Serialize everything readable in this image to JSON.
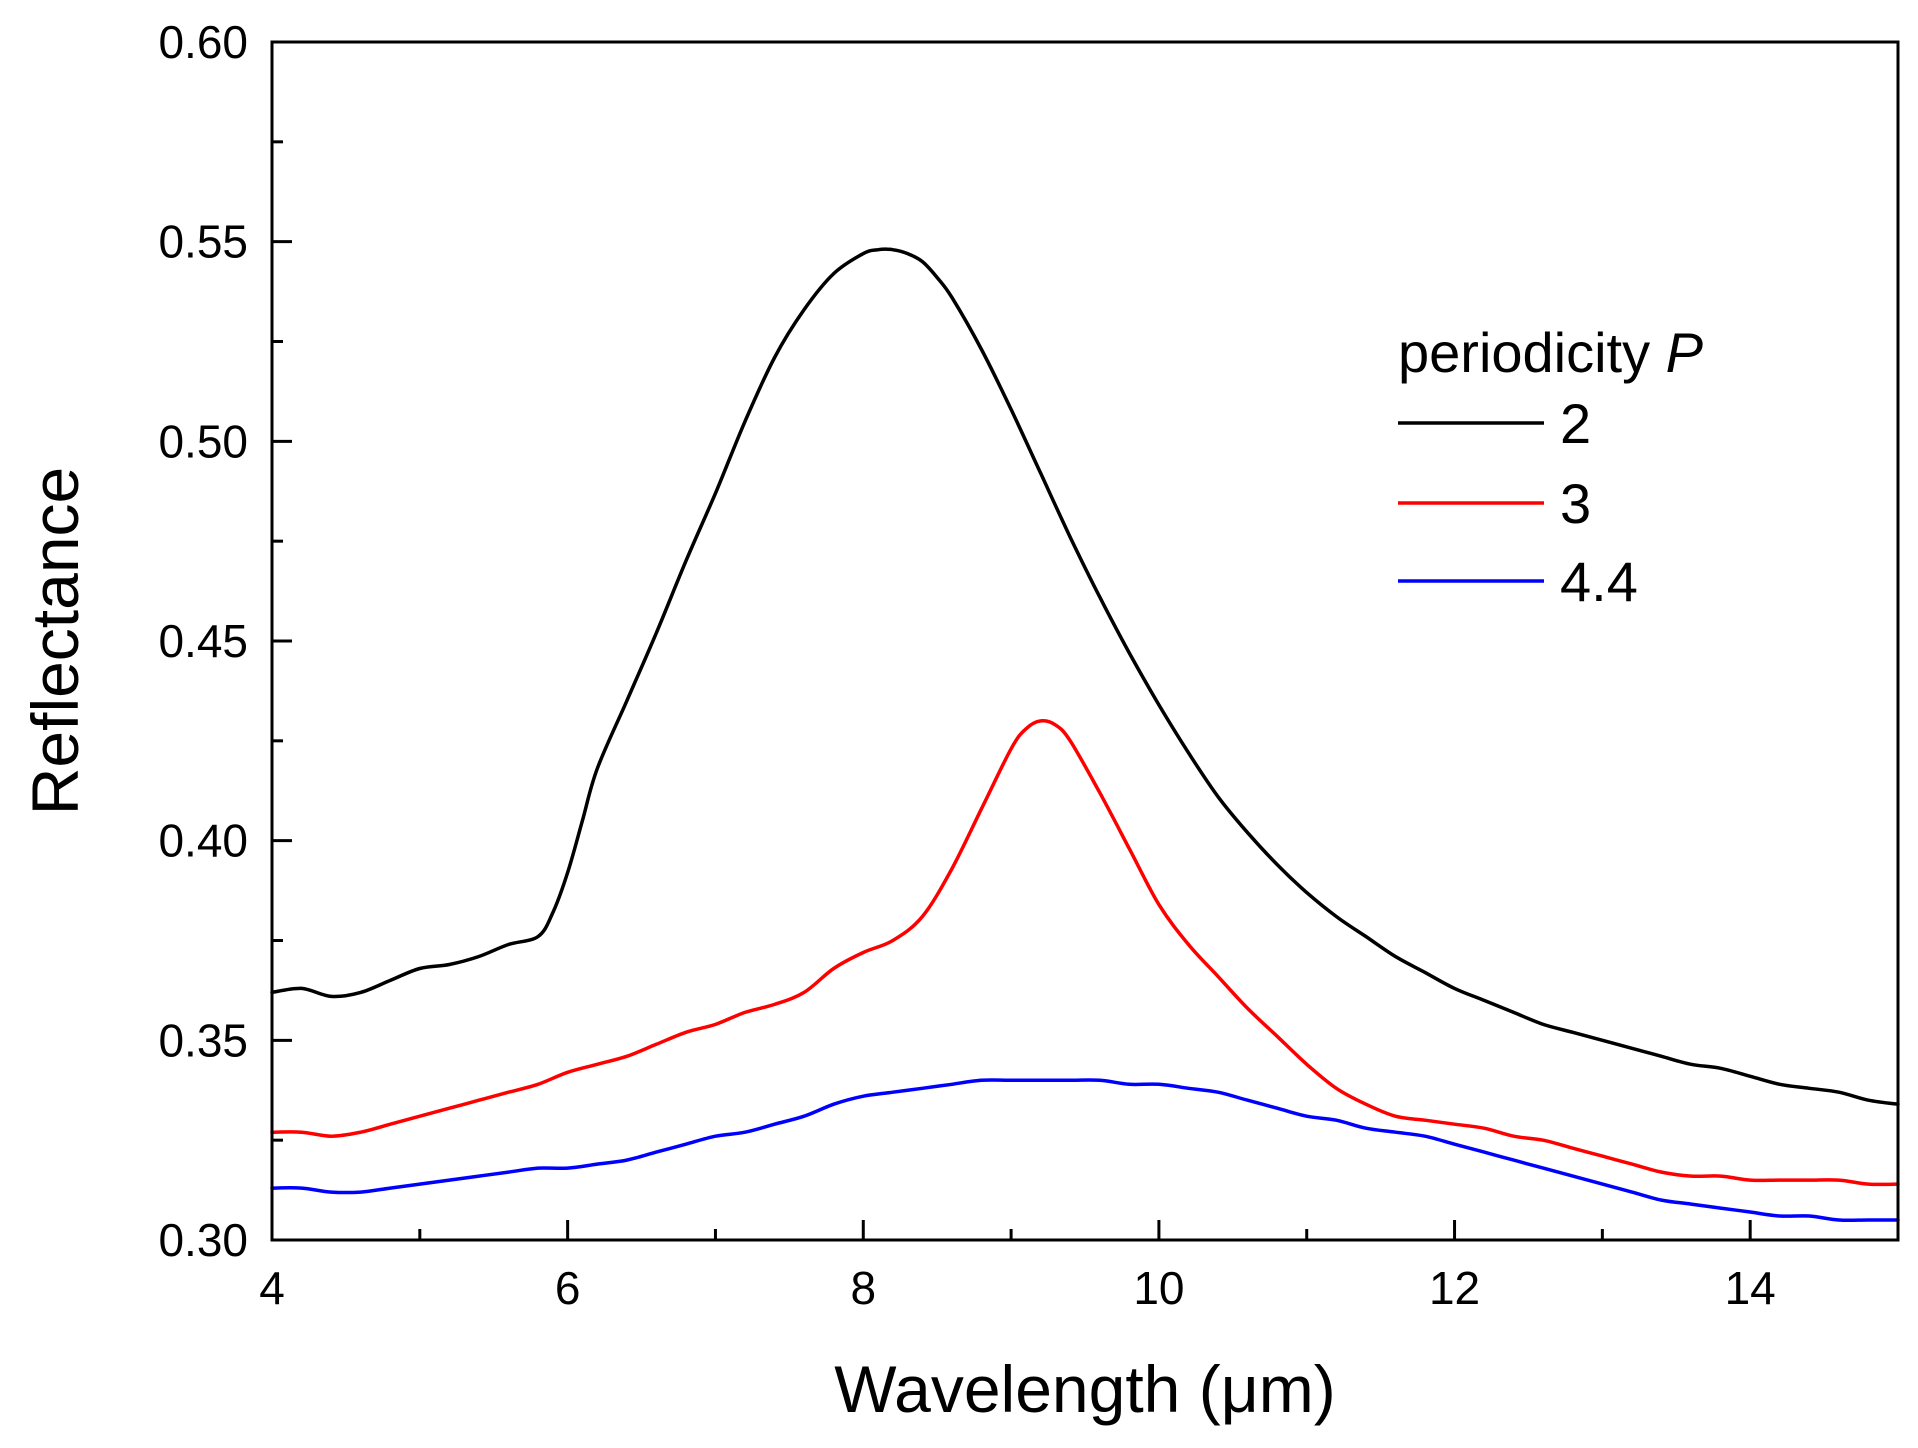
{
  "chart_data": {
    "type": "line",
    "title": "",
    "xlabel": "Wavelength (μm)",
    "ylabel": "Reflectance",
    "xlim": [
      4,
      15
    ],
    "ylim": [
      0.3,
      0.6
    ],
    "xticks": [
      4,
      6,
      8,
      10,
      12,
      14
    ],
    "xtick_labels": [
      "4",
      "6",
      "8",
      "10",
      "12",
      "14"
    ],
    "xminor_ticks": [
      5,
      7,
      9,
      11,
      13,
      15
    ],
    "yticks": [
      0.3,
      0.35,
      0.4,
      0.45,
      0.5,
      0.55,
      0.6
    ],
    "ytick_labels": [
      "0.30",
      "0.35",
      "0.40",
      "0.45",
      "0.50",
      "0.55",
      "0.60"
    ],
    "yminor_ticks": [
      0.325,
      0.375,
      0.425,
      0.475,
      0.525,
      0.575
    ],
    "grid": false,
    "legend": {
      "title_prefix": "periodicity ",
      "title_symbol": "P",
      "position": "top-right"
    },
    "series": [
      {
        "name": "2",
        "color": "#000000",
        "x": [
          4.0,
          4.2,
          4.4,
          4.6,
          4.8,
          5.0,
          5.2,
          5.4,
          5.6,
          5.8,
          5.9,
          6.0,
          6.1,
          6.2,
          6.4,
          6.6,
          6.8,
          7.0,
          7.2,
          7.4,
          7.6,
          7.8,
          8.0,
          8.1,
          8.2,
          8.3,
          8.4,
          8.5,
          8.6,
          8.8,
          9.0,
          9.2,
          9.4,
          9.6,
          9.8,
          10.0,
          10.2,
          10.4,
          10.6,
          10.8,
          11.0,
          11.2,
          11.4,
          11.6,
          11.8,
          12.0,
          12.2,
          12.4,
          12.6,
          12.8,
          13.0,
          13.2,
          13.4,
          13.6,
          13.8,
          14.0,
          14.2,
          14.4,
          14.6,
          14.8,
          15.0
        ],
        "y": [
          0.362,
          0.363,
          0.361,
          0.362,
          0.365,
          0.368,
          0.369,
          0.371,
          0.374,
          0.376,
          0.382,
          0.392,
          0.405,
          0.418,
          0.435,
          0.452,
          0.47,
          0.487,
          0.505,
          0.521,
          0.533,
          0.542,
          0.547,
          0.548,
          0.548,
          0.547,
          0.545,
          0.541,
          0.536,
          0.523,
          0.508,
          0.492,
          0.476,
          0.461,
          0.447,
          0.434,
          0.422,
          0.411,
          0.402,
          0.394,
          0.387,
          0.381,
          0.376,
          0.371,
          0.367,
          0.363,
          0.36,
          0.357,
          0.354,
          0.352,
          0.35,
          0.348,
          0.346,
          0.344,
          0.343,
          0.341,
          0.339,
          0.338,
          0.337,
          0.335,
          0.334
        ]
      },
      {
        "name": "3",
        "color": "#ff0000",
        "x": [
          4.0,
          4.2,
          4.4,
          4.6,
          4.8,
          5.0,
          5.2,
          5.4,
          5.6,
          5.8,
          6.0,
          6.2,
          6.4,
          6.6,
          6.8,
          7.0,
          7.2,
          7.4,
          7.6,
          7.8,
          8.0,
          8.2,
          8.4,
          8.6,
          8.8,
          9.0,
          9.1,
          9.2,
          9.3,
          9.4,
          9.6,
          9.8,
          10.0,
          10.2,
          10.4,
          10.6,
          10.8,
          11.0,
          11.2,
          11.4,
          11.6,
          11.8,
          12.0,
          12.2,
          12.4,
          12.6,
          12.8,
          13.0,
          13.2,
          13.4,
          13.6,
          13.8,
          14.0,
          14.2,
          14.4,
          14.6,
          14.8,
          15.0
        ],
        "y": [
          0.327,
          0.327,
          0.326,
          0.327,
          0.329,
          0.331,
          0.333,
          0.335,
          0.337,
          0.339,
          0.342,
          0.344,
          0.346,
          0.349,
          0.352,
          0.354,
          0.357,
          0.359,
          0.362,
          0.368,
          0.372,
          0.375,
          0.381,
          0.393,
          0.408,
          0.423,
          0.428,
          0.43,
          0.429,
          0.425,
          0.412,
          0.398,
          0.384,
          0.374,
          0.366,
          0.358,
          0.351,
          0.344,
          0.338,
          0.334,
          0.331,
          0.33,
          0.329,
          0.328,
          0.326,
          0.325,
          0.323,
          0.321,
          0.319,
          0.317,
          0.316,
          0.316,
          0.315,
          0.315,
          0.315,
          0.315,
          0.314,
          0.314
        ]
      },
      {
        "name": "4.4",
        "color": "#0000ff",
        "x": [
          4.0,
          4.2,
          4.4,
          4.6,
          4.8,
          5.0,
          5.2,
          5.4,
          5.6,
          5.8,
          6.0,
          6.2,
          6.4,
          6.6,
          6.8,
          7.0,
          7.2,
          7.4,
          7.6,
          7.8,
          8.0,
          8.2,
          8.4,
          8.6,
          8.8,
          9.0,
          9.2,
          9.4,
          9.6,
          9.8,
          10.0,
          10.2,
          10.4,
          10.6,
          10.8,
          11.0,
          11.2,
          11.4,
          11.6,
          11.8,
          12.0,
          12.2,
          12.4,
          12.6,
          12.8,
          13.0,
          13.2,
          13.4,
          13.6,
          13.8,
          14.0,
          14.2,
          14.4,
          14.6,
          14.8,
          15.0
        ],
        "y": [
          0.313,
          0.313,
          0.312,
          0.312,
          0.313,
          0.314,
          0.315,
          0.316,
          0.317,
          0.318,
          0.318,
          0.319,
          0.32,
          0.322,
          0.324,
          0.326,
          0.327,
          0.329,
          0.331,
          0.334,
          0.336,
          0.337,
          0.338,
          0.339,
          0.34,
          0.34,
          0.34,
          0.34,
          0.34,
          0.339,
          0.339,
          0.338,
          0.337,
          0.335,
          0.333,
          0.331,
          0.33,
          0.328,
          0.327,
          0.326,
          0.324,
          0.322,
          0.32,
          0.318,
          0.316,
          0.314,
          0.312,
          0.31,
          0.309,
          0.308,
          0.307,
          0.306,
          0.306,
          0.305,
          0.305,
          0.305
        ]
      }
    ]
  }
}
